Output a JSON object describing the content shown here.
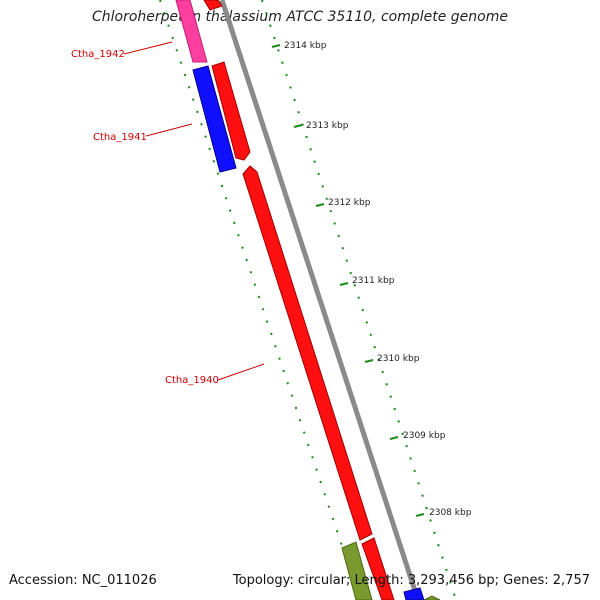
{
  "title": "Chloroherpeton thalassium ATCC 35110, complete genome",
  "footer": {
    "accession": "Accession: NC_011026",
    "summary": "Topology: circular; Length: 3,293,456 bp; Genes: 2,757"
  },
  "colors": {
    "backbone": "#8a8a8a",
    "tick": "#1a8a1a",
    "gene_red": "#ff1010",
    "gene_blue": "#1010ff",
    "gene_pink": "#ff3fa0",
    "gene_olive": "#7a9a30",
    "label_red": "#cc0000"
  },
  "genes": [
    {
      "id": "Ctha_1942",
      "label": "Ctha_1942",
      "color": "pink"
    },
    {
      "id": "Ctha_1941",
      "label": "Ctha_1941",
      "color": "blue"
    },
    {
      "id": "Ctha_1940",
      "label": "Ctha_1940",
      "color": "red"
    }
  ],
  "position_ticks": [
    {
      "label": "2314 kbp"
    },
    {
      "label": "2313 kbp"
    },
    {
      "label": "2312 kbp"
    },
    {
      "label": "2311 kbp"
    },
    {
      "label": "2310 kbp"
    },
    {
      "label": "2309 kbp"
    },
    {
      "label": "2308 kbp"
    }
  ]
}
